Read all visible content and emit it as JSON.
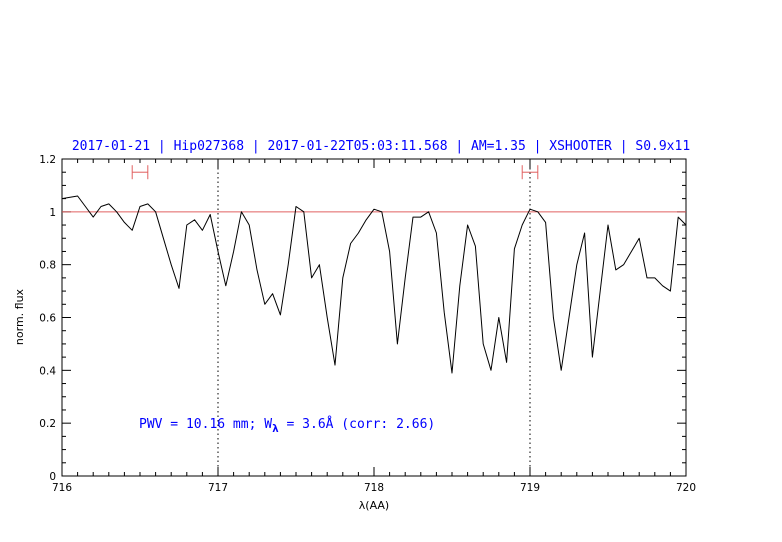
{
  "chart_data": {
    "type": "line",
    "title": "2017-01-21 | Hip027368 | 2017-01-22T05:03:11.568 | AM=1.35 | XSHOOTER | S0.9x11",
    "xlabel": "λ(AA)",
    "ylabel": "norm. flux",
    "xlim": [
      716,
      720
    ],
    "ylim": [
      0,
      1.2
    ],
    "x_ticks": [
      "716",
      "717",
      "718",
      "719",
      "720"
    ],
    "y_ticks": [
      "0",
      "0.2",
      "0.4",
      "0.6",
      "0.8",
      "1",
      "1.2"
    ],
    "annotation": {
      "prefix": "PWV = 10.16 mm; W",
      "subscript": "λ",
      "suffix": " = 3.6Å (corr: 2.66)"
    },
    "reference_line": {
      "y": 1.0,
      "color": "#e06060"
    },
    "vlines_dotted": [
      717.0,
      719.0
    ],
    "continuum_windows": [
      {
        "x0": 716.45,
        "x1": 716.55,
        "y": 1.15
      },
      {
        "x0": 718.95,
        "x1": 719.05,
        "y": 1.15
      }
    ],
    "colors": {
      "title": "#0000ff",
      "annotation": "#0000ff",
      "spectrum": "#000000",
      "markers": "#e06060"
    },
    "series": [
      {
        "x": [
          716.0,
          716.1,
          716.15,
          716.2,
          716.25,
          716.3,
          716.35,
          716.4,
          716.45,
          716.5,
          716.55,
          716.6,
          716.65,
          716.7,
          716.75,
          716.8,
          716.85,
          716.9,
          716.95,
          717.0,
          717.05,
          717.1,
          717.15,
          717.2,
          717.25,
          717.3,
          717.35,
          717.4,
          717.45,
          717.5,
          717.55,
          717.6,
          717.65,
          717.7,
          717.75,
          717.8,
          717.85,
          717.9,
          717.95,
          718.0,
          718.05,
          718.1,
          718.15,
          718.2,
          718.25,
          718.3,
          718.35,
          718.4,
          718.45,
          718.5,
          718.55,
          718.6,
          718.65,
          718.7,
          718.75,
          718.8,
          718.85,
          718.9,
          718.95,
          719.0,
          719.05,
          719.1,
          719.15,
          719.2,
          719.25,
          719.3,
          719.35,
          719.4,
          719.45,
          719.5,
          719.55,
          719.6,
          719.65,
          719.7,
          719.75,
          719.8,
          719.85,
          719.9,
          719.95,
          720.0
        ],
        "y": [
          1.05,
          1.06,
          1.02,
          0.98,
          1.02,
          1.03,
          1.0,
          0.96,
          0.93,
          1.02,
          1.03,
          1.0,
          0.9,
          0.8,
          0.71,
          0.95,
          0.97,
          0.93,
          0.99,
          0.85,
          0.72,
          0.85,
          1.0,
          0.95,
          0.78,
          0.65,
          0.69,
          0.61,
          0.8,
          1.02,
          1.0,
          0.75,
          0.8,
          0.6,
          0.42,
          0.75,
          0.88,
          0.92,
          0.97,
          1.01,
          1.0,
          0.85,
          0.5,
          0.75,
          0.98,
          0.98,
          1.0,
          0.92,
          0.62,
          0.39,
          0.72,
          0.95,
          0.87,
          0.5,
          0.4,
          0.6,
          0.43,
          0.86,
          0.95,
          1.01,
          1.0,
          0.96,
          0.6,
          0.4,
          0.6,
          0.8,
          0.92,
          0.45,
          0.7,
          0.95,
          0.78,
          0.8,
          0.85,
          0.9,
          0.75,
          0.75,
          0.72,
          0.7,
          0.98,
          0.95
        ]
      }
    ]
  }
}
